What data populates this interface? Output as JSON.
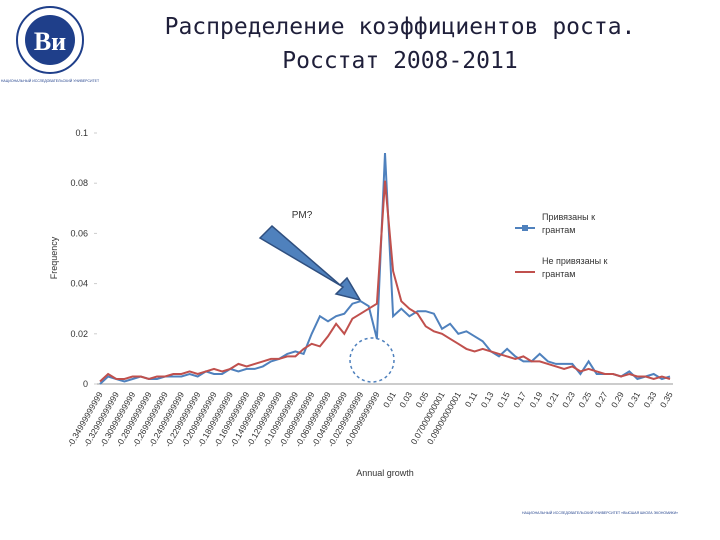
{
  "header": {
    "org": "НАЦИОНАЛЬНЫЙ ИССЛЕДОВАТЕЛЬСКИЙ УНИВЕРСИТЕТ",
    "footer": "НАЦИОНАЛЬНЫЙ ИССЛЕДОВАТЕЛЬСКИЙ УНИВЕРСИТЕТ «ВЫСШАЯ ШКОЛА ЭКОНОМИКИ»"
  },
  "chart_data": {
    "type": "line",
    "title": [
      "Распределение коэффициентов роста.",
      "Росстат 2008-2011"
    ],
    "y_label": "Frequency",
    "x_label": "Annual growth",
    "annotation": "PM?",
    "legend": "right",
    "categories": [
      "-0.34999999999",
      null,
      "-0.32999999999",
      null,
      "-0.30999999999",
      null,
      "-0.28999999999",
      null,
      "-0.26999999999",
      null,
      "-0.24999999999",
      null,
      "-0.22999999999",
      null,
      "-0.20999999999",
      null,
      "-0.18999999999",
      null,
      "-0.16999999999",
      null,
      "-0.14999999999",
      null,
      "-0.12999999999",
      null,
      "-0.10999999999",
      null,
      "-0.08999999999",
      null,
      "-0.06999999999",
      null,
      "-0.04999999999",
      null,
      "-0.02999999999",
      null,
      "-0.00999999999",
      null,
      "0.01",
      null,
      "0.03",
      null,
      "0.05",
      null,
      "0.07000000001",
      null,
      "0.09000000001",
      null,
      "0.11",
      null,
      "0.13",
      null,
      "0.15",
      null,
      "0.17",
      null,
      "0.19",
      null,
      "0.21",
      null,
      "0.23",
      null,
      "0.25",
      null,
      "0.27",
      null,
      "0.29",
      null,
      "0.31",
      null,
      "0.33",
      null,
      "0.35"
    ],
    "series": [
      {
        "name": "Привязаны к грантам",
        "color": "#4f81bd",
        "values": [
          0.0,
          0.003,
          0.002,
          0.001,
          0.002,
          0.003,
          0.002,
          0.002,
          0.003,
          0.003,
          0.003,
          0.004,
          0.003,
          0.005,
          0.004,
          0.004,
          0.006,
          0.005,
          0.006,
          0.006,
          0.007,
          0.009,
          0.01,
          0.012,
          0.013,
          0.012,
          0.02,
          0.027,
          0.025,
          0.027,
          0.028,
          0.032,
          0.033,
          0.031,
          0.018,
          0.092,
          0.027,
          0.03,
          0.027,
          0.029,
          0.029,
          0.028,
          0.022,
          0.024,
          0.02,
          0.021,
          0.019,
          0.017,
          0.013,
          0.011,
          0.014,
          0.011,
          0.009,
          0.009,
          0.012,
          0.009,
          0.008,
          0.008,
          0.008,
          0.004,
          0.009,
          0.004,
          0.004,
          0.004,
          0.003,
          0.005,
          0.002,
          0.003,
          0.004,
          0.002,
          0.003
        ]
      },
      {
        "name": "Не привязаны к грантам",
        "color": "#c0504d",
        "values": [
          0.001,
          0.004,
          0.002,
          0.002,
          0.003,
          0.003,
          0.002,
          0.003,
          0.003,
          0.004,
          0.004,
          0.005,
          0.004,
          0.005,
          0.006,
          0.005,
          0.006,
          0.008,
          0.007,
          0.008,
          0.009,
          0.01,
          0.01,
          0.011,
          0.011,
          0.014,
          0.016,
          0.015,
          0.019,
          0.024,
          0.02,
          0.026,
          0.028,
          0.03,
          0.032,
          0.081,
          0.045,
          0.033,
          0.03,
          0.028,
          0.023,
          0.021,
          0.02,
          0.018,
          0.016,
          0.014,
          0.013,
          0.014,
          0.013,
          0.012,
          0.011,
          0.01,
          0.011,
          0.009,
          0.009,
          0.008,
          0.007,
          0.006,
          0.007,
          0.005,
          0.006,
          0.005,
          0.004,
          0.004,
          0.003,
          0.004,
          0.003,
          0.003,
          0.002,
          0.003,
          0.002
        ]
      }
    ],
    "ylim": [
      0,
      0.1
    ],
    "yticks": [
      0,
      0.02,
      0.04,
      0.06,
      0.08,
      0.1
    ]
  }
}
